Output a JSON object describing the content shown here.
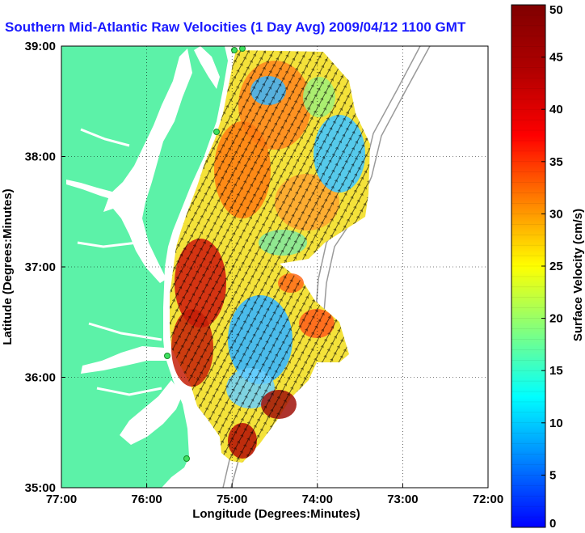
{
  "title": "Southern Mid-Atlantic Raw Velocities (1 Day Avg) 2009/04/12 1100 GMT",
  "map": {
    "xlabel": "Longitude (Degrees:Minutes)",
    "ylabel": "Latitude (Degrees:Minutes)",
    "lon_range": [
      -77,
      -72
    ],
    "lat_range": [
      35,
      39
    ],
    "x_ticks": [
      {
        "value": -77,
        "label": "77:00"
      },
      {
        "value": -76,
        "label": "76:00"
      },
      {
        "value": -75,
        "label": "75:00"
      },
      {
        "value": -74,
        "label": "74:00"
      },
      {
        "value": -73,
        "label": "73:00"
      },
      {
        "value": -72,
        "label": "72:00"
      }
    ],
    "y_ticks": [
      {
        "value": 35,
        "label": "35:00"
      },
      {
        "value": 36,
        "label": "36:00"
      },
      {
        "value": 37,
        "label": "37:00"
      },
      {
        "value": 38,
        "label": "38:00"
      },
      {
        "value": 39,
        "label": "39:00"
      }
    ],
    "grid": "dotted",
    "land_color": "#5cf2a8",
    "vector_color": "#000000",
    "bathymetry_color": "#9a9a9a"
  },
  "colorbar": {
    "label": "Surface Velocity (cm/s)",
    "min": 0,
    "max": 50,
    "ticks": [
      {
        "value": 0,
        "label": "0"
      },
      {
        "value": 5,
        "label": "5"
      },
      {
        "value": 10,
        "label": "10"
      },
      {
        "value": 15,
        "label": "15"
      },
      {
        "value": 20,
        "label": "20"
      },
      {
        "value": 25,
        "label": "25"
      },
      {
        "value": 30,
        "label": "30"
      },
      {
        "value": 35,
        "label": "35"
      },
      {
        "value": 40,
        "label": "40"
      },
      {
        "value": 45,
        "label": "45"
      },
      {
        "value": 50,
        "label": "50"
      }
    ],
    "colormap": "jet",
    "levels": 50
  }
}
